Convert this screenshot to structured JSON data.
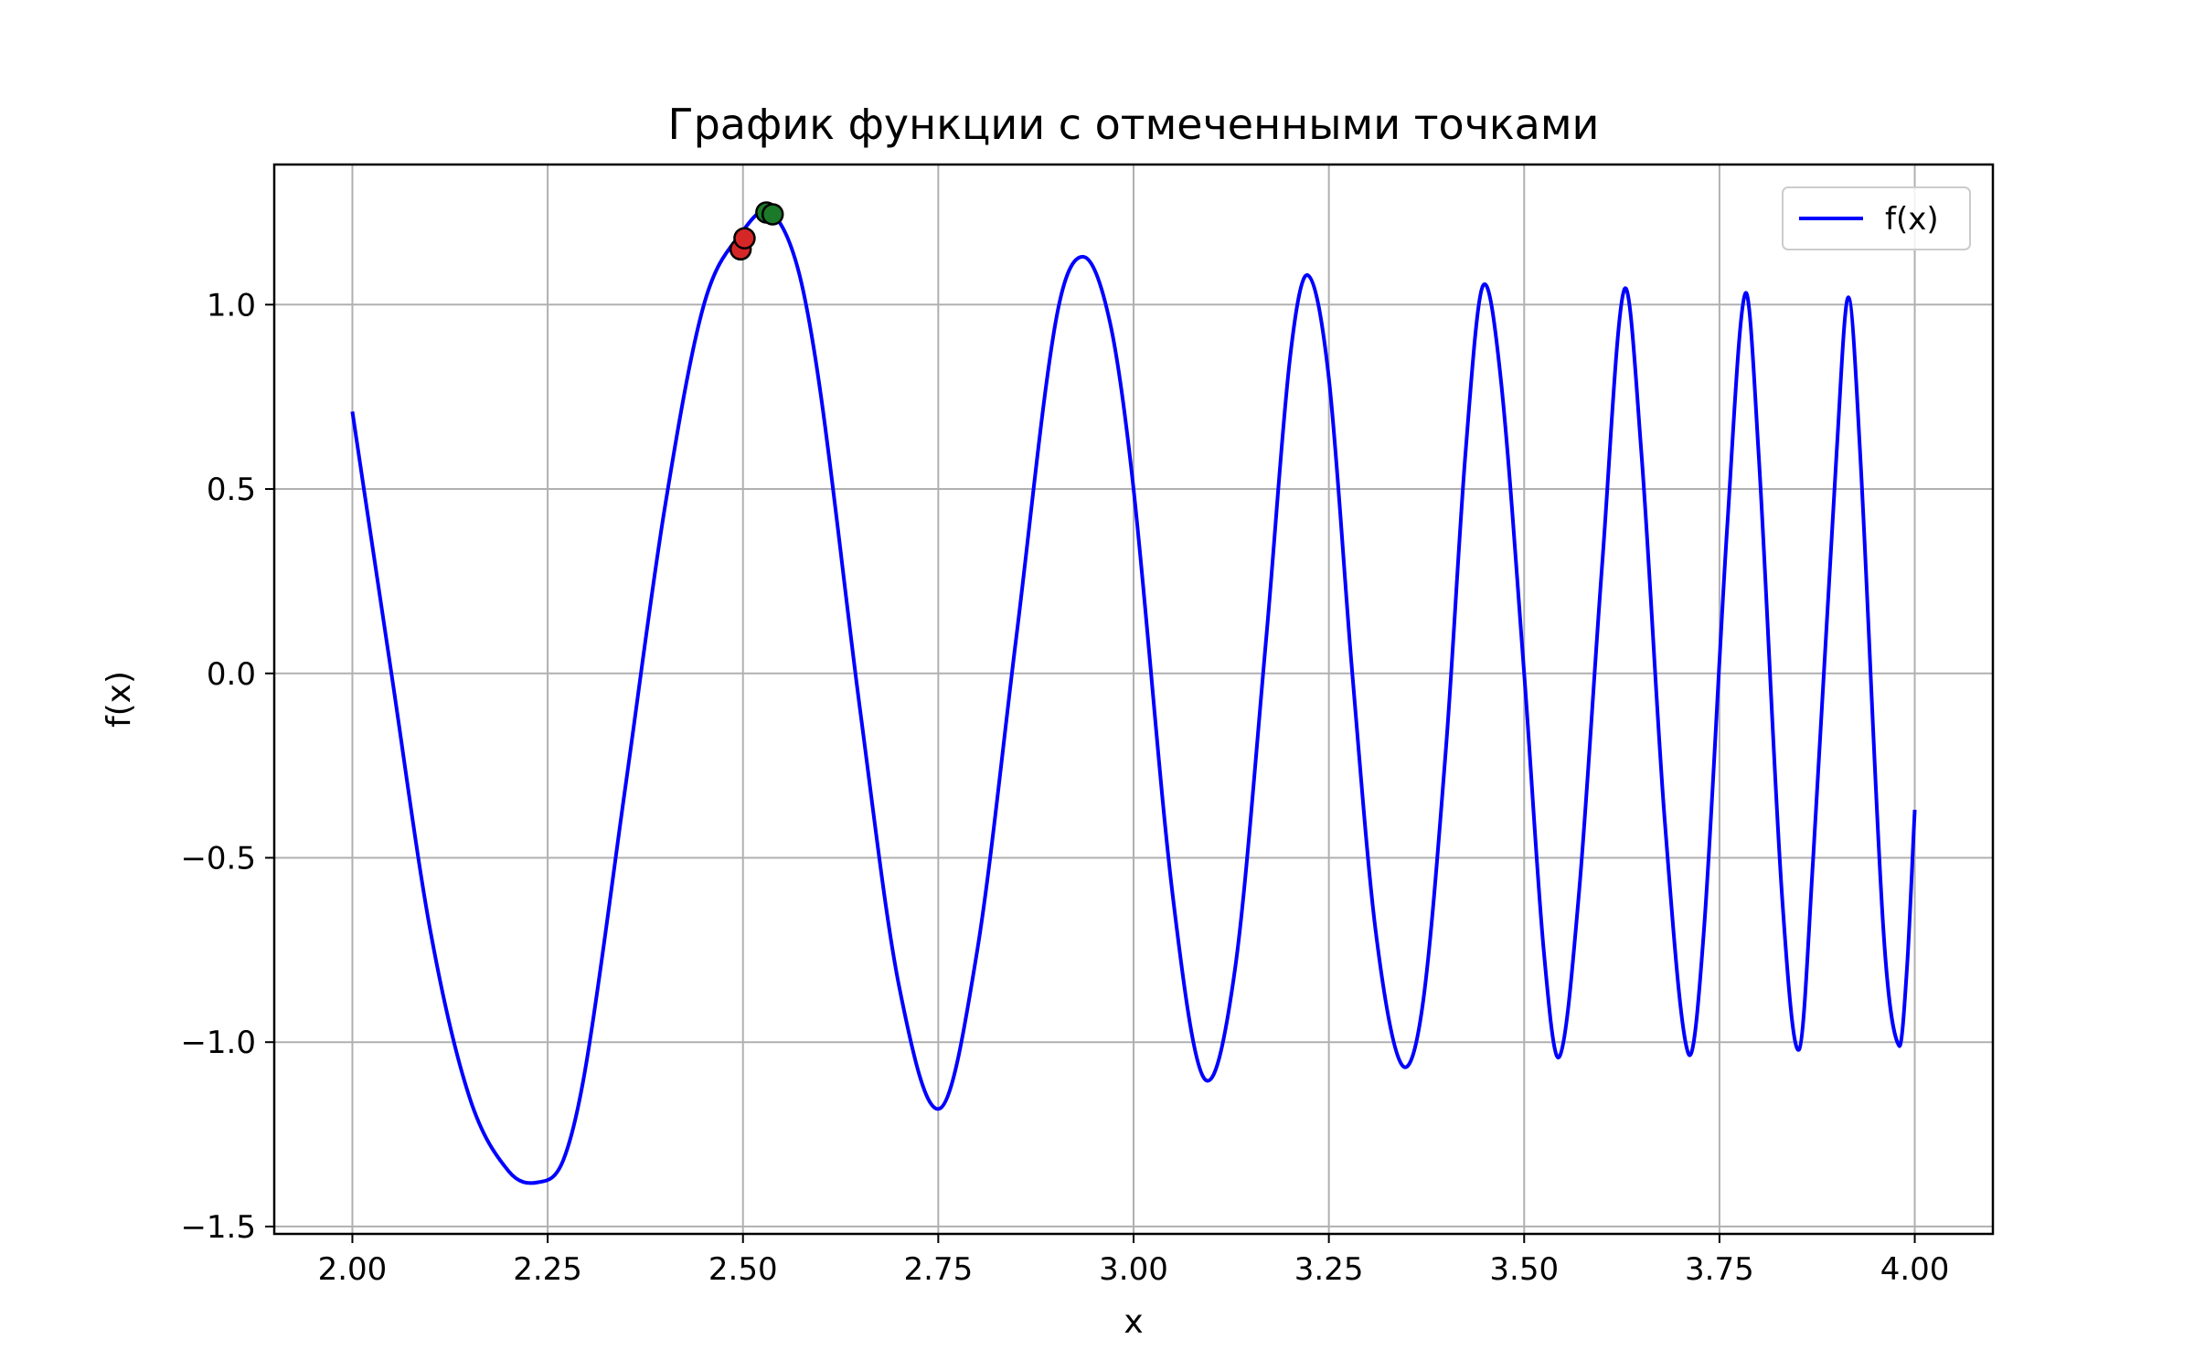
{
  "chart_data": {
    "type": "line",
    "title": "График функции с отмеченными точками",
    "xlabel": "x",
    "ylabel": "f(x)",
    "xlim": [
      1.9,
      4.1
    ],
    "ylim": [
      -1.52,
      1.38
    ],
    "grid": true,
    "legend_position": "top-right",
    "x_ticks": [
      2.0,
      2.25,
      2.5,
      2.75,
      3.0,
      3.25,
      3.5,
      3.75,
      4.0
    ],
    "x_tick_labels": [
      "2.00",
      "2.25",
      "2.50",
      "2.75",
      "3.00",
      "3.25",
      "3.50",
      "3.75",
      "4.00"
    ],
    "y_ticks": [
      -1.5,
      -1.0,
      -0.5,
      0.0,
      0.5,
      1.0
    ],
    "y_tick_labels": [
      "−1.5",
      "−1.0",
      "−0.5",
      "0.0",
      "0.5",
      "1.0"
    ],
    "series": [
      {
        "name": "f(x)",
        "color": "#0000ff",
        "x": [
          2.0,
          2.05,
          2.1,
          2.15,
          2.2,
          2.238,
          2.27,
          2.3,
          2.35,
          2.4,
          2.45,
          2.5,
          2.535,
          2.57,
          2.6,
          2.65,
          2.7,
          2.752,
          2.8,
          2.85,
          2.9,
          2.935,
          2.97,
          3.0,
          3.05,
          3.091,
          3.13,
          3.17,
          3.2,
          3.223,
          3.25,
          3.28,
          3.31,
          3.343,
          3.37,
          3.4,
          3.425,
          3.447,
          3.47,
          3.5,
          3.525,
          3.545,
          3.57,
          3.6,
          3.628,
          3.65,
          3.68,
          3.71,
          3.73,
          3.76,
          3.783,
          3.8,
          3.83,
          3.852,
          3.87,
          3.9,
          3.915,
          3.93,
          3.96,
          3.98,
          3.99,
          4.0
        ],
        "y": [
          0.71,
          0.0,
          -0.7,
          -1.15,
          -1.35,
          -1.38,
          -1.32,
          -1.05,
          -0.3,
          0.45,
          1.0,
          1.2,
          1.25,
          1.1,
          0.75,
          -0.1,
          -0.85,
          -1.18,
          -0.75,
          0.1,
          0.95,
          1.13,
          0.95,
          0.5,
          -0.6,
          -1.1,
          -0.8,
          0.1,
          0.85,
          1.08,
          0.8,
          0.0,
          -0.7,
          -1.06,
          -0.9,
          -0.2,
          0.6,
          1.05,
          0.8,
          0.0,
          -0.75,
          -1.04,
          -0.6,
          0.3,
          1.04,
          0.6,
          -0.4,
          -1.03,
          -0.7,
          0.4,
          1.03,
          0.6,
          -0.6,
          -1.02,
          -0.5,
          0.6,
          1.02,
          0.6,
          -0.7,
          -1.01,
          -0.8,
          -0.37
        ]
      }
    ],
    "marked_points": [
      {
        "x": 2.497,
        "y": 1.15,
        "color": "#d62728"
      },
      {
        "x": 2.502,
        "y": 1.18,
        "color": "#d62728"
      },
      {
        "x": 2.53,
        "y": 1.25,
        "color": "#1a7a2a"
      },
      {
        "x": 2.538,
        "y": 1.245,
        "color": "#1a7a2a"
      }
    ]
  }
}
